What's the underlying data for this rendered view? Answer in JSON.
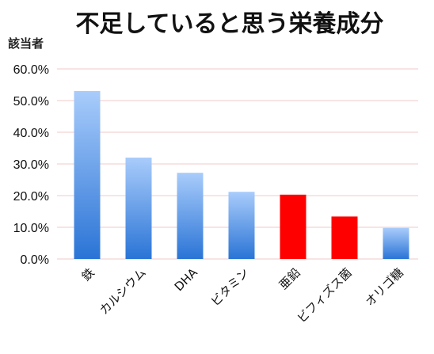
{
  "chart_data": {
    "type": "bar",
    "title": "不足していると思う栄養成分",
    "ylabel": "該当者",
    "xlabel": "",
    "categories": [
      "鉄",
      "カルシウム",
      "DHA",
      "ビタミン",
      "亜鉛",
      "ビフィズス菌",
      "オリゴ糖"
    ],
    "values": [
      53.0,
      32.0,
      27.2,
      21.2,
      20.3,
      13.4,
      9.8
    ],
    "bar_colors": [
      "gradient-blue",
      "gradient-blue",
      "gradient-blue",
      "gradient-blue",
      "#ff0000",
      "#ff0000",
      "gradient-blue"
    ],
    "ylim": [
      0,
      60
    ],
    "yticks": [
      "0.0%",
      "10.0%",
      "20.0%",
      "30.0%",
      "40.0%",
      "50.0%",
      "60.0%"
    ],
    "grid": true,
    "gridline_color": "#f2c9c9",
    "gradient_blue": {
      "top": "#a9ccfb",
      "bottom": "#2a74d6"
    },
    "highlight_color": "#ff0000"
  }
}
